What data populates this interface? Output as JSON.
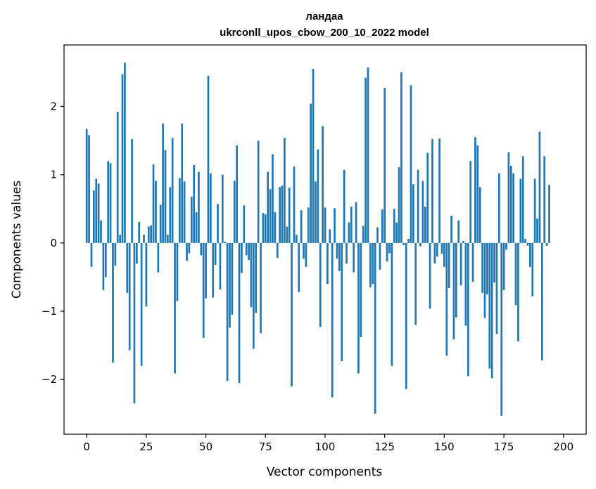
{
  "chart_data": {
    "type": "bar",
    "title": "ландаа",
    "subtitle": "ukrconll_upos_cbow_200_10_2022 model",
    "xlabel": "Vector components",
    "ylabel": "Components values",
    "xlim": [
      -9.5,
      209.5
    ],
    "ylim": [
      -2.8,
      2.9
    ],
    "grid": false,
    "legend": "none",
    "bar_color": "#1f77b4",
    "xticks": [
      0,
      25,
      50,
      75,
      100,
      125,
      150,
      175,
      200
    ],
    "xtick_labels": [
      "0",
      "25",
      "50",
      "75",
      "100",
      "125",
      "150",
      "175",
      "200"
    ],
    "yticks": [
      -2,
      -1,
      0,
      1,
      2
    ],
    "ytick_labels": [
      "−2",
      "−1",
      "0",
      "1",
      "2"
    ],
    "values": [
      1.67,
      1.58,
      -0.35,
      0.77,
      0.94,
      0.87,
      0.33,
      -0.69,
      -0.5,
      1.2,
      1.17,
      -1.75,
      -0.33,
      1.92,
      0.12,
      2.47,
      2.64,
      -0.73,
      -1.57,
      1.52,
      -2.35,
      -0.3,
      0.31,
      -1.8,
      0.12,
      -0.93,
      0.24,
      0.26,
      1.15,
      0.91,
      -0.43,
      0.56,
      1.75,
      1.36,
      0.12,
      0.82,
      1.54,
      -1.91,
      -0.85,
      0.95,
      1.75,
      0.9,
      -0.26,
      -0.15,
      0.68,
      1.14,
      0.45,
      1.04,
      -0.18,
      -1.39,
      -0.81,
      2.45,
      1.02,
      -0.8,
      -0.32,
      0.57,
      -0.68,
      1.0,
      0.02,
      -2.02,
      -1.24,
      -1.05,
      0.91,
      1.43,
      -2.05,
      -0.44,
      0.55,
      -0.18,
      -0.25,
      -0.94,
      -1.55,
      -1.02,
      1.5,
      -1.32,
      0.44,
      0.42,
      1.04,
      0.79,
      1.3,
      0.45,
      -0.22,
      0.82,
      0.84,
      1.54,
      0.24,
      0.81,
      -2.1,
      1.12,
      0.12,
      -0.72,
      0.48,
      -0.23,
      -0.35,
      0.52,
      2.04,
      2.55,
      0.9,
      1.37,
      -1.23,
      1.71,
      0.52,
      -0.6,
      0.2,
      -2.26,
      0.51,
      -0.23,
      -0.41,
      -1.73,
      1.07,
      -0.3,
      0.3,
      0.53,
      -0.43,
      0.6,
      -1.91,
      -1.38,
      0.25,
      2.42,
      2.57,
      -0.65,
      -0.6,
      -2.5,
      0.23,
      -0.39,
      0.49,
      2.27,
      -0.27,
      -0.15,
      -1.8,
      0.5,
      0.3,
      1.11,
      2.5,
      -0.03,
      -2.14,
      0.06,
      2.31,
      0.86,
      -1.2,
      1.07,
      -0.05,
      0.91,
      0.53,
      1.32,
      -0.96,
      1.52,
      -0.3,
      -0.2,
      1.53,
      -0.16,
      -0.35,
      -1.65,
      -0.66,
      0.4,
      -1.41,
      -1.09,
      0.33,
      -0.62,
      0.03,
      -1.21,
      -1.95,
      1.2,
      -0.57,
      1.55,
      1.43,
      0.82,
      -0.73,
      -1.1,
      -0.75,
      -1.84,
      -1.98,
      -0.58,
      -1.33,
      1.02,
      -2.53,
      -0.69,
      -0.1,
      1.33,
      1.13,
      1.02,
      -0.91,
      -1.44,
      0.94,
      1.27,
      0.06,
      -0.04,
      -0.35,
      -0.78,
      0.94,
      0.36,
      1.63,
      -1.72,
      1.27,
      -0.04,
      0.85
    ]
  }
}
